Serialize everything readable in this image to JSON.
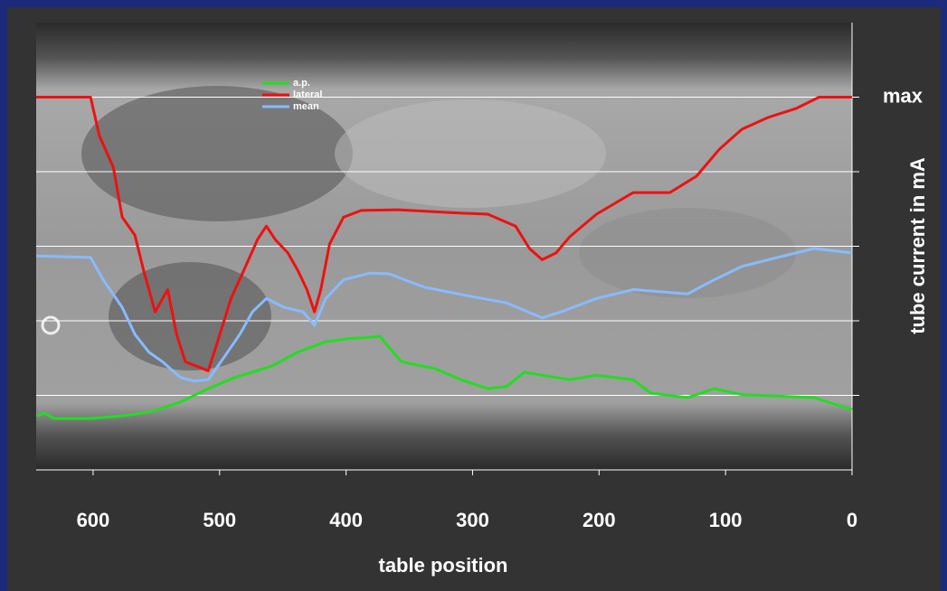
{
  "chart_data": {
    "type": "line",
    "xlabel": "table position",
    "ylabel": "tube current in mA",
    "xlim": [
      645,
      0
    ],
    "xticks": [
      600,
      500,
      400,
      300,
      200,
      100,
      0
    ],
    "ylim": [
      0,
      6
    ],
    "yticks": [
      {
        "value": 5,
        "label": "max"
      }
    ],
    "grid_lines": [
      1,
      2,
      3,
      4,
      5
    ],
    "series": [
      {
        "name": "a.p.",
        "color": "#22dd22",
        "x": [
          645,
          638,
          631,
          602,
          574,
          552,
          531,
          509,
          488,
          459,
          438,
          416,
          398,
          381,
          373,
          366,
          356,
          330,
          309,
          288,
          273,
          259,
          245,
          223,
          202,
          173,
          159,
          130,
          109,
          87,
          59,
          30,
          0
        ],
        "values": [
          0.73,
          0.76,
          0.69,
          0.69,
          0.73,
          0.79,
          0.91,
          1.09,
          1.24,
          1.39,
          1.58,
          1.72,
          1.76,
          1.78,
          1.79,
          1.64,
          1.45,
          1.36,
          1.21,
          1.09,
          1.12,
          1.31,
          1.27,
          1.21,
          1.27,
          1.21,
          1.03,
          0.97,
          1.09,
          1.01,
          0.99,
          0.97,
          0.81
        ]
      },
      {
        "name": "lateral",
        "color": "#ee1111",
        "x": [
          645,
          602,
          595,
          584,
          577,
          567,
          560,
          551,
          541,
          534,
          527,
          518,
          509,
          502,
          491,
          481,
          470,
          463,
          456,
          446,
          438,
          431,
          425,
          420,
          413,
          402,
          388,
          359,
          316,
          288,
          266,
          255,
          245,
          234,
          223,
          202,
          173,
          144,
          123,
          105,
          87,
          66,
          44,
          26,
          0
        ],
        "values": [
          5.0,
          5.0,
          4.48,
          4.06,
          3.39,
          3.15,
          2.67,
          2.12,
          2.42,
          1.82,
          1.45,
          1.39,
          1.33,
          1.7,
          2.3,
          2.67,
          3.09,
          3.27,
          3.09,
          2.91,
          2.67,
          2.42,
          2.12,
          2.42,
          3.03,
          3.39,
          3.48,
          3.49,
          3.45,
          3.43,
          3.27,
          2.97,
          2.82,
          2.91,
          3.13,
          3.43,
          3.72,
          3.72,
          3.94,
          4.3,
          4.57,
          4.73,
          4.85,
          5.0,
          5.0
        ]
      },
      {
        "name": "mean",
        "color": "#88bbff",
        "x": [
          645,
          602,
          592,
          577,
          567,
          556,
          545,
          531,
          520,
          509,
          499,
          484,
          474,
          463,
          449,
          434,
          425,
          416,
          402,
          381,
          366,
          338,
          302,
          273,
          245,
          230,
          202,
          173,
          152,
          130,
          109,
          87,
          59,
          30,
          0
        ],
        "values": [
          2.87,
          2.85,
          2.55,
          2.18,
          1.82,
          1.58,
          1.45,
          1.24,
          1.19,
          1.21,
          1.45,
          1.82,
          2.12,
          2.3,
          2.18,
          2.12,
          1.94,
          2.3,
          2.55,
          2.64,
          2.63,
          2.45,
          2.33,
          2.24,
          2.04,
          2.12,
          2.3,
          2.42,
          2.39,
          2.36,
          2.55,
          2.73,
          2.85,
          2.97,
          2.91
        ]
      }
    ]
  }
}
